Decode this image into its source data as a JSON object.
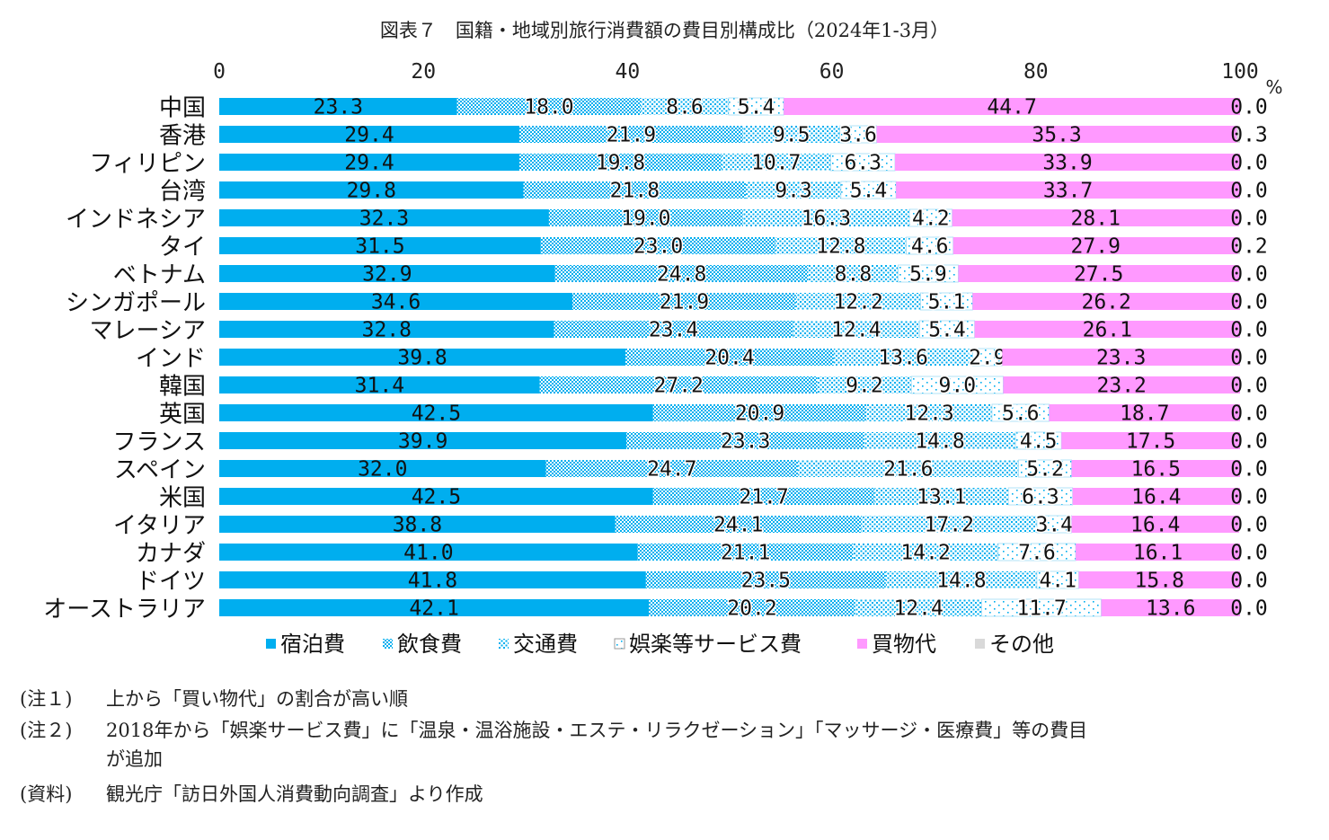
{
  "title": "図表７　国籍・地域別旅行消費額の費目別構成比（2024年1-3月）",
  "chart_data": {
    "type": "bar",
    "orientation": "horizontal",
    "stacked": true,
    "unit": "%",
    "xlim": [
      0,
      100
    ],
    "xticks": [
      "0",
      "20",
      "40",
      "60",
      "80",
      "100"
    ],
    "legend_position": "bottom",
    "categories": [
      "中国",
      "香港",
      "フィリピン",
      "台湾",
      "インドネシア",
      "タイ",
      "ベトナム",
      "シンガポール",
      "マレーシア",
      "インド",
      "韓国",
      "英国",
      "フランス",
      "スペイン",
      "米国",
      "イタリア",
      "カナダ",
      "ドイツ",
      "オーストラリア"
    ],
    "series": [
      {
        "name": "宿泊費",
        "color": "#00aeef",
        "pattern": "solid",
        "values": [
          23.3,
          29.4,
          29.4,
          29.8,
          32.3,
          31.5,
          32.9,
          34.6,
          32.8,
          39.8,
          31.4,
          42.5,
          39.9,
          32.0,
          42.5,
          38.8,
          41.0,
          41.8,
          42.1
        ],
        "labels": [
          "23.3",
          "29.4",
          "29.4",
          "29.8",
          "32.3",
          "31.5",
          "32.9",
          "34.6",
          "32.8",
          "39.8",
          "31.4",
          "42.5",
          "39.9",
          "32.0",
          "42.5",
          "38.8",
          "41.0",
          "41.8",
          "42.1"
        ]
      },
      {
        "name": "飲食費",
        "color": "#00aeef",
        "pattern": "dense",
        "values": [
          18.0,
          21.9,
          19.8,
          21.8,
          19.0,
          23.0,
          24.8,
          21.9,
          23.4,
          20.4,
          27.2,
          20.9,
          23.3,
          24.7,
          21.7,
          24.1,
          21.1,
          23.5,
          20.2
        ],
        "labels": [
          "18.0",
          "21.9",
          "19.8",
          "21.8",
          "19.0",
          "23.0",
          "24.8",
          "21.9",
          "23.4",
          "20.4",
          "27.2",
          "20.9",
          "23.3",
          "24.7",
          "21.7",
          "24.1",
          "21.1",
          "23.5",
          "20.2"
        ]
      },
      {
        "name": "交通費",
        "color": "#00aeef",
        "pattern": "medium",
        "values": [
          8.6,
          9.5,
          10.7,
          9.3,
          16.3,
          12.8,
          8.8,
          12.2,
          12.4,
          13.6,
          9.2,
          12.3,
          14.8,
          21.6,
          13.1,
          17.2,
          14.2,
          14.8,
          12.4
        ],
        "labels": [
          "8.6",
          "9.5",
          "10.7",
          "9.3",
          "16.3",
          "12.8",
          "8.8",
          "12.2",
          "12.4",
          "13.6",
          "9.2",
          "12.3",
          "14.8",
          "21.6",
          "13.1",
          "17.2",
          "14.2",
          "14.8",
          "12.4"
        ]
      },
      {
        "name": "娯楽等サービス費",
        "color": "#00aeef",
        "pattern": "sparse",
        "values": [
          5.4,
          3.6,
          6.3,
          5.4,
          4.2,
          4.6,
          5.9,
          5.1,
          5.4,
          2.9,
          9.0,
          5.6,
          4.5,
          5.2,
          6.3,
          3.4,
          7.6,
          4.1,
          11.7
        ],
        "labels": [
          "5.4",
          "3.6",
          "6.3",
          "5.4",
          "4.2",
          "4.6",
          "5.9",
          "5.1",
          "5.4",
          "2.9",
          "9.0",
          "5.6",
          "4.5",
          "5.2",
          "6.3",
          "3.4",
          "7.6",
          "4.1",
          "11.7"
        ]
      },
      {
        "name": "買物代",
        "color": "#ff99ff",
        "pattern": "solid",
        "values": [
          44.7,
          35.3,
          33.9,
          33.7,
          28.1,
          27.9,
          27.5,
          26.2,
          26.1,
          23.3,
          23.2,
          18.7,
          17.5,
          16.5,
          16.4,
          16.4,
          16.1,
          15.8,
          13.6
        ],
        "labels": [
          "44.7",
          "35.3",
          "33.9",
          "33.7",
          "28.1",
          "27.9",
          "27.5",
          "26.2",
          "26.1",
          "23.3",
          "23.2",
          "18.7",
          "17.5",
          "16.5",
          "16.4",
          "16.4",
          "16.1",
          "15.8",
          "13.6"
        ]
      },
      {
        "name": "その他",
        "color": "#d9d9d9",
        "pattern": "solid",
        "values": [
          0.0,
          0.3,
          0.0,
          0.0,
          0.0,
          0.2,
          0.0,
          0.0,
          0.0,
          0.0,
          0.0,
          0.0,
          0.0,
          0.0,
          0.0,
          0.0,
          0.0,
          0.0,
          0.0
        ],
        "labels": [
          "0.0",
          "0.3",
          "0.0",
          "0.0",
          "0.0",
          "0.2",
          "0.0",
          "0.0",
          "0.0",
          "0.0",
          "0.0",
          "0.0",
          "0.0",
          "0.0",
          "0.0",
          "0.0",
          "0.0",
          "0.0",
          "0.0"
        ]
      }
    ]
  },
  "notes": {
    "note1": {
      "tag": "(注１)",
      "text": "上から「買い物代」の割合が高い順"
    },
    "note2": {
      "tag": "(注２)",
      "text": "2018年から「娯楽サービス費」に「温泉・温浴施設・エステ・リラクゼーション」「マッサージ・医療費」等の費目",
      "cont": "が追加"
    },
    "source": {
      "tag": "(資料)",
      "text": "観光庁「訪日外国人消費動向調査」より作成"
    }
  }
}
